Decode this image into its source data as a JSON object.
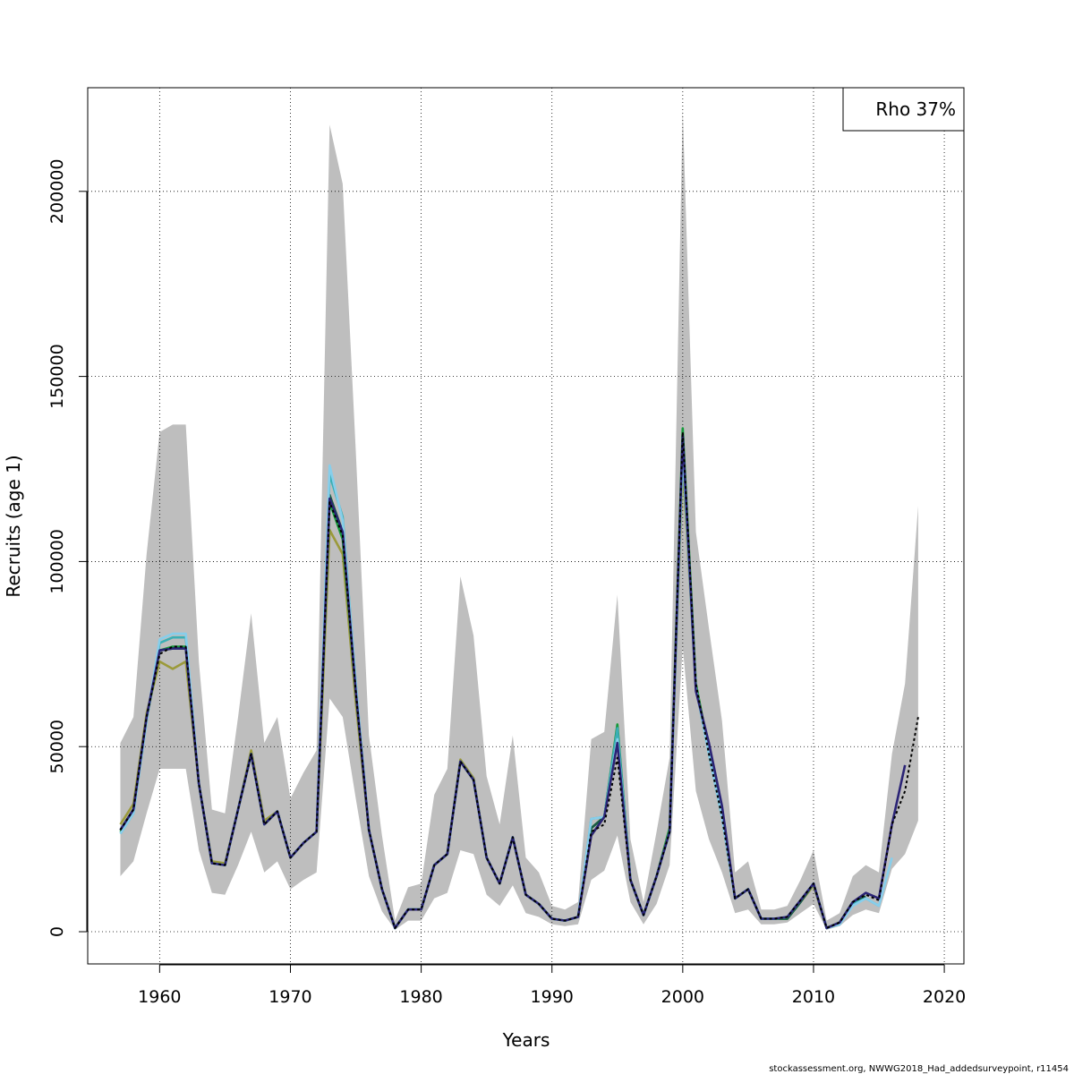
{
  "chart_data": {
    "type": "line",
    "xlabel": "Years",
    "ylabel": "Recruits (age 1)",
    "xlim": [
      1954.5,
      2021.5
    ],
    "ylim": [
      -8700,
      228000
    ],
    "xticks": [
      1960,
      1970,
      1980,
      1990,
      2000,
      2010,
      2020
    ],
    "xtick_labels": [
      "1960",
      "1970",
      "1980",
      "1990",
      "2000",
      "2010",
      "2020"
    ],
    "yticks": [
      0,
      50000,
      100000,
      150000,
      200000
    ],
    "ytick_labels": [
      "0",
      "50000",
      "100000",
      "150000",
      "200000"
    ],
    "grid": true,
    "legend_text": "Rho 37%",
    "legend_position": "top-right",
    "caption": "stockassessment.org, NWWG2018_Had_addedsurveypoint, r11454",
    "colors": {
      "band": "#bebebe",
      "base": "#000000",
      "peel1": "#2b2476",
      "peel2": "#87ceeb",
      "peel3": "#3aafb5",
      "peel4": "#1b5c45",
      "peel5": "#169a3a",
      "peel6": "#9b9a3a"
    },
    "band_years": [
      1957,
      1958,
      1959,
      1960,
      1961,
      1962,
      1963,
      1964,
      1965,
      1966,
      1967,
      1968,
      1969,
      1970,
      1971,
      1972,
      1973,
      1974,
      1975,
      1976,
      1977,
      1978,
      1979,
      1980,
      1981,
      1982,
      1983,
      1984,
      1985,
      1986,
      1987,
      1988,
      1989,
      1990,
      1991,
      1992,
      1993,
      1994,
      1995,
      1996,
      1997,
      1998,
      1999,
      2000,
      2001,
      2002,
      2003,
      2004,
      2005,
      2006,
      2007,
      2008,
      2009,
      2010,
      2011,
      2012,
      2013,
      2014,
      2015,
      2016,
      2017,
      2018
    ],
    "band_upper": [
      51000,
      58000,
      102000,
      135000,
      137000,
      137000,
      73000,
      33000,
      32000,
      58000,
      86000,
      51000,
      58000,
      36000,
      43000,
      49000,
      218000,
      202000,
      130000,
      53000,
      26000,
      3000,
      12000,
      13000,
      37000,
      44000,
      96000,
      80000,
      42000,
      29000,
      53000,
      20000,
      16000,
      7000,
      6000,
      8000,
      52000,
      54000,
      91000,
      25000,
      8000,
      27000,
      47000,
      222000,
      108000,
      82000,
      57000,
      16000,
      19000,
      6000,
      6000,
      7000,
      14000,
      22000,
      3000,
      5000,
      15000,
      18000,
      16000,
      48000,
      67000,
      115000
    ],
    "band_lower": [
      15000,
      19000,
      32000,
      44000,
      44000,
      44000,
      22000,
      10500,
      10000,
      18000,
      27000,
      16000,
      19000,
      11500,
      14000,
      16000,
      63000,
      58000,
      36000,
      15000,
      5500,
      500,
      3000,
      3000,
      9000,
      10500,
      22000,
      21000,
      10000,
      7000,
      12500,
      5000,
      4000,
      2000,
      1500,
      2000,
      14000,
      16500,
      26000,
      8000,
      2000,
      7500,
      18000,
      77000,
      38000,
      25000,
      16000,
      5000,
      6000,
      2000,
      2000,
      2500,
      5000,
      7500,
      500,
      1500,
      4500,
      6000,
      5000,
      17000,
      21000,
      30000
    ],
    "series": [
      {
        "name": "base",
        "style": "dashed",
        "years": [
          1957,
          1958,
          1959,
          1960,
          1961,
          1962,
          1963,
          1964,
          1965,
          1966,
          1967,
          1968,
          1969,
          1970,
          1971,
          1972,
          1973,
          1974,
          1975,
          1976,
          1977,
          1978,
          1979,
          1980,
          1981,
          1982,
          1983,
          1984,
          1985,
          1986,
          1987,
          1988,
          1989,
          1990,
          1991,
          1992,
          1993,
          1994,
          1995,
          1996,
          1997,
          1998,
          1999,
          2000,
          2001,
          2002,
          2003,
          2004,
          2005,
          2006,
          2007,
          2008,
          2009,
          2010,
          2011,
          2012,
          2013,
          2014,
          2015,
          2016,
          2017,
          2018
        ],
        "values": [
          27500,
          33000,
          58000,
          75000,
          77000,
          77000,
          40000,
          18500,
          18000,
          33000,
          48000,
          29000,
          32500,
          20000,
          24000,
          27000,
          116000,
          107000,
          65000,
          27500,
          11500,
          1000,
          6000,
          6000,
          18000,
          21000,
          46000,
          41000,
          20000,
          13000,
          25500,
          10000,
          7500,
          3500,
          3000,
          4000,
          27000,
          29000,
          47000,
          14000,
          4500,
          15000,
          27000,
          135000,
          67000,
          48000,
          31000,
          9000,
          11500,
          3500,
          3500,
          4000,
          8500,
          13000,
          1000,
          2500,
          8000,
          10000,
          8500,
          29000,
          38000,
          58000
        ]
      },
      {
        "name": "peel1",
        "style": "solid",
        "years": [
          1957,
          1958,
          1959,
          1960,
          1961,
          1962,
          1963,
          1964,
          1965,
          1966,
          1967,
          1968,
          1969,
          1970,
          1971,
          1972,
          1973,
          1974,
          1975,
          1976,
          1977,
          1978,
          1979,
          1980,
          1981,
          1982,
          1983,
          1984,
          1985,
          1986,
          1987,
          1988,
          1989,
          1990,
          1991,
          1992,
          1993,
          1994,
          1995,
          1996,
          1997,
          1998,
          1999,
          2000,
          2001,
          2002,
          2003,
          2004,
          2005,
          2006,
          2007,
          2008,
          2009,
          2010,
          2011,
          2012,
          2013,
          2014,
          2015,
          2016,
          2017
        ],
        "values": [
          27500,
          33000,
          58000,
          76000,
          76500,
          76500,
          40000,
          18500,
          18000,
          33000,
          48000,
          29000,
          32500,
          20000,
          24000,
          27000,
          117000,
          108000,
          65000,
          27500,
          11500,
          1000,
          6000,
          6000,
          18000,
          21000,
          46000,
          41000,
          20000,
          13000,
          25500,
          10000,
          7500,
          3500,
          3000,
          4000,
          26000,
          31000,
          51000,
          14000,
          4500,
          15000,
          27000,
          134000,
          65000,
          51000,
          34000,
          9000,
          11500,
          3500,
          3500,
          4000,
          8500,
          13000,
          1000,
          2500,
          8000,
          10500,
          9000,
          29000,
          45000
        ]
      },
      {
        "name": "peel2",
        "style": "solid",
        "years": [
          1957,
          1958,
          1959,
          1960,
          1961,
          1962,
          1963,
          1964,
          1965,
          1966,
          1967,
          1968,
          1969,
          1970,
          1971,
          1972,
          1973,
          1974,
          1975,
          1976,
          1977,
          1978,
          1979,
          1980,
          1981,
          1982,
          1983,
          1984,
          1985,
          1986,
          1987,
          1988,
          1989,
          1990,
          1991,
          1992,
          1993,
          1994,
          1995,
          1996,
          1997,
          1998,
          1999,
          2000,
          2001,
          2002,
          2003,
          2004,
          2005,
          2006,
          2007,
          2008,
          2009,
          2010,
          2011,
          2012,
          2013,
          2014,
          2015,
          2016
        ],
        "values": [
          26500,
          32000,
          57000,
          79000,
          80500,
          80500,
          40000,
          18500,
          18000,
          33000,
          48000,
          29000,
          32500,
          20000,
          24000,
          27000,
          126000,
          111000,
          67000,
          27500,
          11500,
          1000,
          6000,
          6000,
          18000,
          21000,
          46000,
          41000,
          20000,
          13000,
          25500,
          10000,
          7500,
          3500,
          3000,
          4000,
          30500,
          31000,
          52000,
          14000,
          4500,
          15000,
          27000,
          130000,
          66000,
          48000,
          31000,
          9000,
          11500,
          3500,
          3500,
          4000,
          8500,
          13000,
          1000,
          2000,
          7000,
          9000,
          7000,
          20000
        ]
      },
      {
        "name": "peel3",
        "style": "solid",
        "years": [
          1957,
          1958,
          1959,
          1960,
          1961,
          1962,
          1963,
          1964,
          1965,
          1966,
          1967,
          1968,
          1969,
          1970,
          1971,
          1972,
          1973,
          1974,
          1975,
          1976,
          1977,
          1978,
          1979,
          1980,
          1981,
          1982,
          1983,
          1984,
          1985,
          1986,
          1987,
          1988,
          1989,
          1990,
          1991,
          1992,
          1993,
          1994,
          1995,
          1996,
          1997,
          1998,
          1999,
          2000,
          2001,
          2002,
          2003,
          2004,
          2005,
          2006,
          2007,
          2008,
          2009,
          2010,
          2011,
          2012,
          2013,
          2014,
          2015
        ],
        "values": [
          26500,
          32000,
          57000,
          78000,
          79500,
          79500,
          40000,
          18500,
          18000,
          33000,
          48000,
          29000,
          32500,
          20000,
          24000,
          27000,
          123500,
          112000,
          67000,
          27500,
          11500,
          1000,
          6000,
          6000,
          18000,
          21000,
          46000,
          41000,
          20000,
          13000,
          25500,
          10000,
          7500,
          3500,
          3000,
          4000,
          30500,
          31000,
          55000,
          14000,
          4500,
          15000,
          27000,
          130000,
          66000,
          48000,
          31000,
          9000,
          11500,
          3500,
          3500,
          4000,
          8500,
          13000,
          1000,
          2000,
          7500,
          9000,
          7000
        ]
      },
      {
        "name": "peel4",
        "style": "solid",
        "years": [
          1957,
          1958,
          1959,
          1960,
          1961,
          1962,
          1963,
          1964,
          1965,
          1966,
          1967,
          1968,
          1969,
          1970,
          1971,
          1972,
          1973,
          1974,
          1975,
          1976,
          1977,
          1978,
          1979,
          1980,
          1981,
          1982,
          1983,
          1984,
          1985,
          1986,
          1987,
          1988,
          1989,
          1990,
          1991,
          1992,
          1993,
          1994,
          1995,
          1996,
          1997,
          1998,
          1999,
          2000,
          2001,
          2002,
          2003,
          2004,
          2005,
          2006,
          2007,
          2008,
          2009,
          2010,
          2011,
          2012,
          2013,
          2014
        ],
        "values": [
          27500,
          33000,
          58000,
          76000,
          76500,
          76500,
          40000,
          18500,
          18000,
          33000,
          48000,
          29000,
          32500,
          20000,
          24000,
          27000,
          118000,
          108000,
          65000,
          27500,
          11500,
          1000,
          6000,
          6000,
          18000,
          21000,
          46000,
          41000,
          20000,
          13000,
          25500,
          10000,
          7500,
          3500,
          3000,
          4000,
          28000,
          31000,
          55000,
          14000,
          4500,
          15000,
          27000,
          134000,
          66000,
          49000,
          32000,
          9000,
          11500,
          3500,
          3500,
          3500,
          8000,
          13000,
          1000,
          2500,
          8000,
          9500
        ]
      },
      {
        "name": "peel5",
        "style": "solid",
        "years": [
          1957,
          1958,
          1959,
          1960,
          1961,
          1962,
          1963,
          1964,
          1965,
          1966,
          1967,
          1968,
          1969,
          1970,
          1971,
          1972,
          1973,
          1974,
          1975,
          1976,
          1977,
          1978,
          1979,
          1980,
          1981,
          1982,
          1983,
          1984,
          1985,
          1986,
          1987,
          1988,
          1989,
          1990,
          1991,
          1992,
          1993,
          1994,
          1995,
          1996,
          1997,
          1998,
          1999,
          2000,
          2001,
          2002,
          2003,
          2004,
          2005,
          2006,
          2007,
          2008,
          2009,
          2010,
          2011,
          2012,
          2013
        ],
        "values": [
          27000,
          32500,
          57500,
          76000,
          77000,
          77000,
          40000,
          18500,
          18000,
          33000,
          48000,
          29000,
          32500,
          20000,
          24000,
          27000,
          116000,
          106000,
          65000,
          27500,
          11500,
          1000,
          6000,
          6000,
          18000,
          21000,
          46000,
          41000,
          20000,
          13000,
          25500,
          10000,
          7500,
          3500,
          3000,
          4000,
          28000,
          31000,
          56000,
          14000,
          4500,
          15000,
          28000,
          136000,
          67000,
          49000,
          32000,
          9000,
          11500,
          3500,
          3500,
          3500,
          8000,
          13000,
          1000,
          2500,
          8000
        ]
      },
      {
        "name": "peel6",
        "style": "solid",
        "years": [
          1957,
          1958,
          1959,
          1960,
          1961,
          1962,
          1963,
          1964,
          1965,
          1966,
          1967,
          1968,
          1969,
          1970,
          1971,
          1972,
          1973,
          1974,
          1975,
          1976,
          1977,
          1978,
          1979,
          1980,
          1981,
          1982,
          1983,
          1984,
          1985,
          1986,
          1987,
          1988,
          1989,
          1990,
          1991,
          1992,
          1993,
          1994,
          1995,
          1996,
          1997,
          1998,
          1999,
          2000,
          2001,
          2002,
          2003,
          2004,
          2005,
          2006,
          2007,
          2008,
          2009,
          2010,
          2011,
          2012
        ],
        "values": [
          29000,
          34500,
          59000,
          73000,
          71000,
          73000,
          40000,
          19000,
          18500,
          33000,
          49000,
          30000,
          32500,
          20000,
          24000,
          27000,
          108500,
          102000,
          62000,
          27500,
          11500,
          1000,
          6000,
          6000,
          18000,
          21000,
          46500,
          41500,
          20000,
          13000,
          25500,
          10000,
          7500,
          3500,
          3000,
          4000,
          26000,
          31000,
          53000,
          14000,
          4500,
          15000,
          28000,
          126000,
          67000,
          49000,
          32000,
          9000,
          11500,
          3500,
          3500,
          3500,
          8000,
          12500,
          1000,
          2500
        ]
      }
    ]
  }
}
